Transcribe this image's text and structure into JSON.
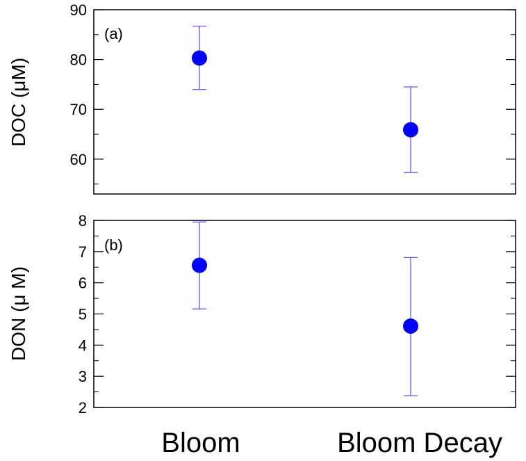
{
  "chart_data": [
    {
      "type": "scatter",
      "panel_label": "(a)",
      "ylabel": "DOC (μM)",
      "ylim": [
        53,
        90
      ],
      "yticks": [
        60,
        70,
        80,
        90
      ],
      "categories": [
        "Bloom",
        "Bloom Decay"
      ],
      "series": [
        {
          "values": [
            80.3,
            65.9
          ],
          "error_low": [
            74.0,
            57.3
          ],
          "error_high": [
            86.7,
            74.5
          ]
        }
      ],
      "grid": false
    },
    {
      "type": "scatter",
      "panel_label": "(b)",
      "ylabel": "DON (μ M)",
      "ylim": [
        2,
        8
      ],
      "yticks": [
        2,
        3,
        4,
        5,
        6,
        7,
        8
      ],
      "categories": [
        "Bloom",
        "Bloom Decay"
      ],
      "series": [
        {
          "values": [
            6.56,
            4.61
          ],
          "error_low": [
            5.16,
            2.38
          ],
          "error_high": [
            7.95,
            6.81
          ]
        }
      ],
      "grid": false
    }
  ],
  "x_categories": [
    {
      "label": "Bloom",
      "color": "#1a8080"
    },
    {
      "label": "Bloom Decay",
      "color": "#000000"
    }
  ],
  "colors": {
    "marker": "#0000ff",
    "errorbar": "#5a5aff",
    "axis": "#000000"
  }
}
